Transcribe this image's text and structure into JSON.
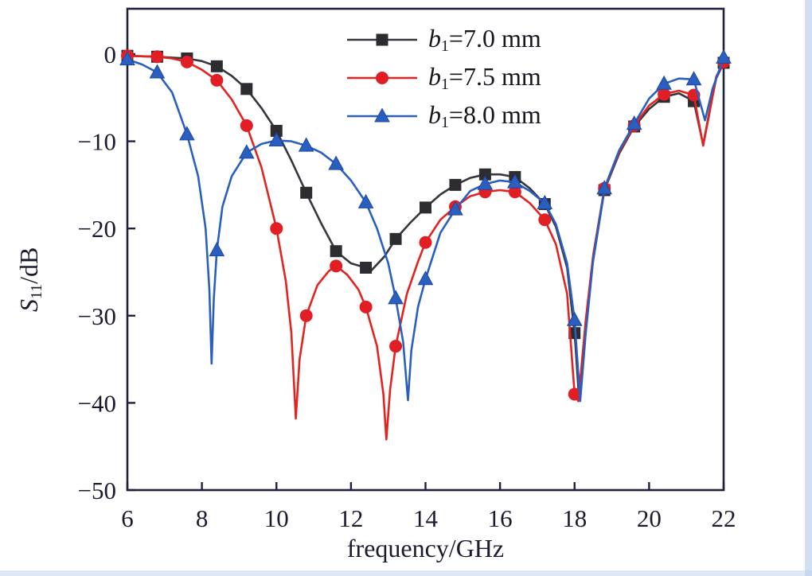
{
  "figure": {
    "background": "#ffffff",
    "text_color": "#1b1b2e",
    "frame_color": "#20203c"
  },
  "chart_data": {
    "type": "line",
    "title": "",
    "xlabel": "frequency/GHz",
    "ylabel": {
      "var": "S",
      "sub": "11",
      "rest": "/dB"
    },
    "xlim": [
      6,
      22
    ],
    "ylim": [
      -50,
      5.2
    ],
    "x_ticks": [
      6,
      8,
      10,
      12,
      14,
      16,
      18,
      20,
      22
    ],
    "x_tick_labels": [
      "6",
      "8",
      "10",
      "12",
      "14",
      "16",
      "18",
      "20",
      "22"
    ],
    "y_ticks": [
      0,
      -10,
      -20,
      -30,
      -40,
      -50
    ],
    "y_tick_labels": [
      "0",
      "−10",
      "−20",
      "−30",
      "−40",
      "−50"
    ],
    "grid": false,
    "legend_position": "top-inside",
    "series": [
      {
        "name": "b1=7.0 mm",
        "label": {
          "var": "b",
          "sub": "1",
          "value": "=7.0 mm"
        },
        "color": "#36363e",
        "marker_color": "#2c2c31",
        "marker": "square",
        "markers": [
          [
            6.0,
            -0.2
          ],
          [
            6.8,
            -0.3
          ],
          [
            7.6,
            -0.5
          ],
          [
            8.4,
            -1.4
          ],
          [
            9.2,
            -4.0
          ],
          [
            10.0,
            -8.8
          ],
          [
            10.8,
            -15.9
          ],
          [
            11.6,
            -22.6
          ],
          [
            12.4,
            -24.5
          ],
          [
            13.2,
            -21.2
          ],
          [
            14.0,
            -17.6
          ],
          [
            14.8,
            -15.0
          ],
          [
            15.6,
            -13.8
          ],
          [
            16.4,
            -14.1
          ],
          [
            17.2,
            -17.2
          ],
          [
            18.0,
            -32.0
          ],
          [
            18.8,
            -15.6
          ],
          [
            19.6,
            -8.3
          ],
          [
            20.4,
            -4.9
          ],
          [
            21.2,
            -5.4
          ],
          [
            22.0,
            -1.0
          ]
        ],
        "line": [
          [
            6.0,
            -0.2
          ],
          [
            6.8,
            -0.3
          ],
          [
            7.6,
            -0.5
          ],
          [
            8.0,
            -0.8
          ],
          [
            8.4,
            -1.4
          ],
          [
            8.8,
            -2.5
          ],
          [
            9.2,
            -4.0
          ],
          [
            9.6,
            -6.2
          ],
          [
            10.0,
            -8.8
          ],
          [
            10.4,
            -12.2
          ],
          [
            10.8,
            -15.9
          ],
          [
            11.2,
            -19.4
          ],
          [
            11.6,
            -22.6
          ],
          [
            12.0,
            -24.0
          ],
          [
            12.4,
            -24.5
          ],
          [
            12.55,
            -24.8
          ],
          [
            12.9,
            -23.2
          ],
          [
            13.2,
            -21.2
          ],
          [
            13.6,
            -19.3
          ],
          [
            14.0,
            -17.6
          ],
          [
            14.4,
            -16.1
          ],
          [
            14.8,
            -15.0
          ],
          [
            15.2,
            -14.2
          ],
          [
            15.6,
            -13.8
          ],
          [
            16.0,
            -13.8
          ],
          [
            16.4,
            -14.1
          ],
          [
            16.8,
            -15.4
          ],
          [
            17.2,
            -17.2
          ],
          [
            17.5,
            -19.8
          ],
          [
            17.8,
            -24.5
          ],
          [
            18.0,
            -32.0
          ],
          [
            18.12,
            -39.5
          ],
          [
            18.25,
            -34.0
          ],
          [
            18.45,
            -25.0
          ],
          [
            18.8,
            -15.6
          ],
          [
            19.2,
            -11.4
          ],
          [
            19.6,
            -8.3
          ],
          [
            20.0,
            -6.3
          ],
          [
            20.4,
            -4.9
          ],
          [
            20.8,
            -4.5
          ],
          [
            21.2,
            -5.4
          ],
          [
            21.45,
            -10.4
          ],
          [
            21.6,
            -7.0
          ],
          [
            21.8,
            -2.8
          ],
          [
            22.0,
            -1.0
          ]
        ]
      },
      {
        "name": "b1=7.5 mm",
        "label": {
          "var": "b",
          "sub": "1",
          "value": "=7.5 mm"
        },
        "color": "#e2231f",
        "marker_color": "#e21e25",
        "marker": "circle",
        "markers": [
          [
            6.0,
            -0.2
          ],
          [
            6.8,
            -0.3
          ],
          [
            7.6,
            -0.9
          ],
          [
            8.4,
            -3.0
          ],
          [
            9.2,
            -8.2
          ],
          [
            10.0,
            -20.0
          ],
          [
            10.8,
            -30.0
          ],
          [
            11.6,
            -24.3
          ],
          [
            12.4,
            -29.0
          ],
          [
            13.2,
            -33.5
          ],
          [
            14.0,
            -21.6
          ],
          [
            14.8,
            -17.5
          ],
          [
            15.6,
            -15.8
          ],
          [
            16.4,
            -15.8
          ],
          [
            17.2,
            -19.0
          ],
          [
            18.0,
            -39.0
          ],
          [
            18.8,
            -15.4
          ],
          [
            19.6,
            -8.2
          ],
          [
            20.4,
            -4.6
          ],
          [
            21.2,
            -4.7
          ],
          [
            22.0,
            -0.9
          ]
        ],
        "line": [
          [
            6.0,
            -0.2
          ],
          [
            6.8,
            -0.3
          ],
          [
            7.2,
            -0.5
          ],
          [
            7.6,
            -0.9
          ],
          [
            8.0,
            -1.8
          ],
          [
            8.4,
            -3.0
          ],
          [
            8.8,
            -5.2
          ],
          [
            9.2,
            -8.2
          ],
          [
            9.6,
            -13.0
          ],
          [
            10.0,
            -20.0
          ],
          [
            10.25,
            -26.0
          ],
          [
            10.4,
            -32.0
          ],
          [
            10.52,
            -41.8
          ],
          [
            10.62,
            -35.0
          ],
          [
            10.8,
            -30.0
          ],
          [
            11.1,
            -26.5
          ],
          [
            11.4,
            -24.9
          ],
          [
            11.6,
            -24.3
          ],
          [
            11.9,
            -25.3
          ],
          [
            12.2,
            -27.0
          ],
          [
            12.4,
            -29.0
          ],
          [
            12.7,
            -33.5
          ],
          [
            12.87,
            -39.0
          ],
          [
            12.95,
            -44.2
          ],
          [
            13.05,
            -38.5
          ],
          [
            13.2,
            -33.5
          ],
          [
            13.5,
            -27.5
          ],
          [
            13.8,
            -23.8
          ],
          [
            14.0,
            -21.6
          ],
          [
            14.4,
            -19.0
          ],
          [
            14.8,
            -17.5
          ],
          [
            15.2,
            -16.3
          ],
          [
            15.6,
            -15.8
          ],
          [
            16.0,
            -15.6
          ],
          [
            16.4,
            -15.8
          ],
          [
            16.8,
            -17.1
          ],
          [
            17.2,
            -19.0
          ],
          [
            17.5,
            -21.8
          ],
          [
            17.8,
            -27.5
          ],
          [
            18.0,
            -39.0
          ],
          [
            18.1,
            -39.8
          ],
          [
            18.3,
            -30.5
          ],
          [
            18.5,
            -23.0
          ],
          [
            18.8,
            -15.4
          ],
          [
            19.2,
            -11.2
          ],
          [
            19.6,
            -8.2
          ],
          [
            20.0,
            -5.9
          ],
          [
            20.4,
            -4.6
          ],
          [
            20.8,
            -4.2
          ],
          [
            21.2,
            -4.7
          ],
          [
            21.45,
            -10.5
          ],
          [
            21.6,
            -7.2
          ],
          [
            21.8,
            -2.6
          ],
          [
            22.0,
            -0.9
          ]
        ]
      },
      {
        "name": "b1=8.0 mm",
        "label": {
          "var": "b",
          "sub": "1",
          "value": "=8.0 mm"
        },
        "color": "#2a5fc0",
        "marker_color": "#2a5fc0",
        "marker": "triangle",
        "markers": [
          [
            6.0,
            -0.6
          ],
          [
            6.8,
            -2.1
          ],
          [
            7.6,
            -9.2
          ],
          [
            8.4,
            -22.5
          ],
          [
            9.2,
            -11.3
          ],
          [
            10.0,
            -9.9
          ],
          [
            10.8,
            -10.5
          ],
          [
            11.6,
            -12.6
          ],
          [
            12.4,
            -17.0
          ],
          [
            13.2,
            -28.0
          ],
          [
            14.0,
            -25.8
          ],
          [
            14.8,
            -17.8
          ],
          [
            15.6,
            -14.9
          ],
          [
            16.4,
            -14.7
          ],
          [
            17.2,
            -17.1
          ],
          [
            18.0,
            -30.5
          ],
          [
            18.8,
            -15.4
          ],
          [
            19.6,
            -8.0
          ],
          [
            20.4,
            -3.4
          ],
          [
            21.2,
            -2.9
          ],
          [
            22.0,
            -0.4
          ]
        ],
        "line": [
          [
            6.0,
            -0.6
          ],
          [
            6.4,
            -1.2
          ],
          [
            6.8,
            -2.1
          ],
          [
            7.2,
            -4.4
          ],
          [
            7.6,
            -9.2
          ],
          [
            7.9,
            -14.0
          ],
          [
            8.1,
            -20.0
          ],
          [
            8.2,
            -27.0
          ],
          [
            8.26,
            -35.5
          ],
          [
            8.32,
            -28.0
          ],
          [
            8.4,
            -22.5
          ],
          [
            8.55,
            -17.5
          ],
          [
            8.8,
            -14.0
          ],
          [
            9.2,
            -11.3
          ],
          [
            9.6,
            -10.3
          ],
          [
            10.0,
            -9.9
          ],
          [
            10.4,
            -10.0
          ],
          [
            10.8,
            -10.5
          ],
          [
            11.2,
            -11.3
          ],
          [
            11.6,
            -12.6
          ],
          [
            12.0,
            -14.5
          ],
          [
            12.4,
            -17.0
          ],
          [
            12.7,
            -20.0
          ],
          [
            13.0,
            -24.0
          ],
          [
            13.2,
            -28.0
          ],
          [
            13.4,
            -33.0
          ],
          [
            13.53,
            -39.7
          ],
          [
            13.62,
            -34.0
          ],
          [
            13.8,
            -29.0
          ],
          [
            14.0,
            -25.8
          ],
          [
            14.4,
            -20.5
          ],
          [
            14.8,
            -17.8
          ],
          [
            15.2,
            -15.7
          ],
          [
            15.6,
            -14.9
          ],
          [
            16.0,
            -14.5
          ],
          [
            16.4,
            -14.7
          ],
          [
            16.8,
            -15.7
          ],
          [
            17.2,
            -17.1
          ],
          [
            17.5,
            -19.5
          ],
          [
            17.8,
            -24.0
          ],
          [
            18.0,
            -30.5
          ],
          [
            18.15,
            -39.8
          ],
          [
            18.3,
            -32.0
          ],
          [
            18.5,
            -23.5
          ],
          [
            18.8,
            -15.4
          ],
          [
            19.2,
            -11.0
          ],
          [
            19.6,
            -8.0
          ],
          [
            20.0,
            -5.1
          ],
          [
            20.4,
            -3.4
          ],
          [
            20.8,
            -2.8
          ],
          [
            21.2,
            -2.9
          ],
          [
            21.5,
            -7.6
          ],
          [
            21.7,
            -4.0
          ],
          [
            22.0,
            -0.4
          ]
        ]
      }
    ]
  }
}
